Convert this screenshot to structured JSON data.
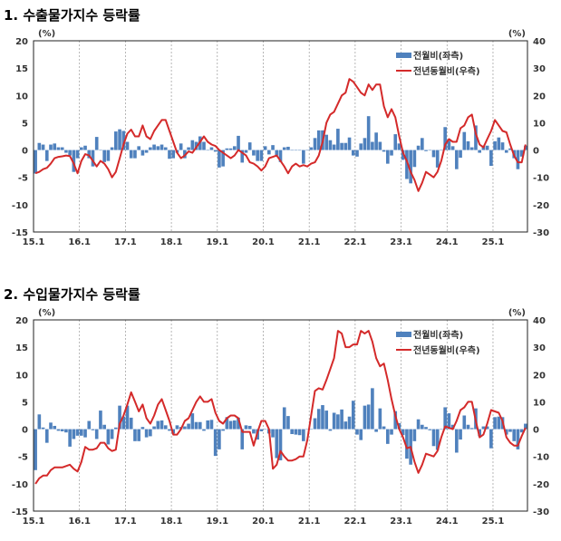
{
  "chart_data": [
    {
      "type": "bar+line",
      "title": "1. 수출물가지수 등락률",
      "left_unit": "(%)",
      "right_unit": "(%)",
      "x_ticks": [
        "15.1",
        "16.1",
        "17.1",
        "18.1",
        "19.1",
        "20.1",
        "21.1",
        "22.1",
        "23.1",
        "24.1",
        "25.1"
      ],
      "x_range": [
        "2015-01",
        "2025-09"
      ],
      "ylim_left": [
        -15,
        20
      ],
      "yticks_left": [
        20,
        15,
        10,
        5,
        0,
        -5,
        -10,
        -15
      ],
      "ylim_right": [
        -30,
        40
      ],
      "yticks_right": [
        40,
        30,
        20,
        10,
        0,
        -10,
        -20,
        -30
      ],
      "grid": "vertical dashed at year starts",
      "legend": "top-right",
      "series": [
        {
          "name": "전월비(좌측)",
          "type": "bar",
          "axis": "left",
          "color": "#4f81bd",
          "values": [
            -4.3,
            1.3,
            1,
            -2,
            1,
            1.2,
            0.5,
            0.5,
            -0.5,
            -1,
            -4,
            -1.5,
            0.5,
            0.8,
            -1.5,
            -3,
            2.4,
            0,
            -2.2,
            -2,
            0.5,
            3.4,
            3.8,
            3.5,
            1.5,
            -1.5,
            -1.5,
            0.7,
            -1,
            -0.5,
            0.5,
            1,
            0.7,
            1,
            0.5,
            -1.6,
            -1.5,
            -0.5,
            1.2,
            -1.5,
            0.5,
            1.8,
            1.5,
            2.5,
            1.5,
            0,
            0.5,
            -0.3,
            -3.2,
            -3,
            0.3,
            0.3,
            0.7,
            2.6,
            -2.3,
            -0.5,
            1.4,
            -1,
            -2,
            -2,
            0.7,
            -0.8,
            0.9,
            -1,
            -2.2,
            0.5,
            0.6,
            0,
            0,
            0,
            -2.5,
            0,
            0.5,
            2.2,
            3.6,
            3.6,
            2.8,
            1.8,
            1,
            3.9,
            1.3,
            1.3,
            2.3,
            -1,
            -1.2,
            1.2,
            2.2,
            6.2,
            1.5,
            3.2,
            1.5,
            -0.3,
            -2.5,
            -1,
            2.9,
            1.2,
            -1.8,
            -5.3,
            -6.1,
            -3.1,
            0.8,
            2.2,
            -0.2,
            0,
            -1.3,
            -3.2,
            0,
            4.2,
            1.7,
            0.7,
            -3.5,
            -1.4,
            3.3,
            1.6,
            0.5,
            4.5,
            -0.5,
            0.8,
            0.8,
            -2.9,
            1.6,
            2.3,
            1.4,
            -0.5,
            0.3,
            -1.5,
            -3.5,
            -1.2,
            0.8
          ]
        },
        {
          "name": "전년동월비(우측)",
          "type": "line",
          "axis": "right",
          "color": "#d42a2a",
          "values": [
            -8.5,
            -8,
            -7,
            -6.5,
            -5,
            -3,
            -2.5,
            -2.3,
            -2,
            -2.2,
            -5,
            -8.5,
            -4,
            -1.5,
            -2,
            -4,
            -6,
            -4,
            -5,
            -7,
            -10,
            -8,
            -3,
            2,
            6,
            7.5,
            5,
            5,
            9,
            5,
            4,
            7,
            9,
            11,
            11,
            7,
            3,
            -1,
            -3,
            -2,
            -0.5,
            -1,
            1,
            3,
            5,
            3,
            2,
            1.5,
            0,
            -1,
            -2,
            -3,
            -2,
            0,
            -1,
            -2,
            -4.5,
            -5,
            -6,
            -7.5,
            -6,
            -3,
            -2.5,
            -2,
            -4,
            -6,
            -8.5,
            -6,
            -5,
            -6,
            -5.5,
            -6,
            -5,
            -4.5,
            -2,
            3,
            10,
            13,
            14,
            17,
            20,
            21,
            26,
            25,
            23,
            21,
            20,
            24,
            22,
            24,
            24,
            16,
            12,
            15,
            12,
            5,
            -1,
            -4,
            -8,
            -11,
            -15,
            -12,
            -8,
            -9,
            -10,
            -8,
            -4,
            2,
            4,
            3,
            3,
            8,
            9,
            12,
            13,
            6,
            2,
            1,
            4,
            7,
            11,
            9,
            7,
            6.5,
            2,
            -2,
            -4.5,
            -4.5,
            2
          ]
        }
      ]
    },
    {
      "type": "bar+line",
      "title": "2. 수입물가지수 등락률",
      "left_unit": "(%)",
      "right_unit": "(%)",
      "x_ticks": [
        "15.1",
        "16.1",
        "17.1",
        "18.1",
        "19.1",
        "20.1",
        "21.1",
        "22.1",
        "23.1",
        "24.1",
        "25.1"
      ],
      "x_range": [
        "2015-01",
        "2025-09"
      ],
      "ylim_left": [
        -15,
        20
      ],
      "yticks_left": [
        20,
        15,
        10,
        5,
        0,
        -5,
        -10,
        -15
      ],
      "ylim_right": [
        -30,
        40
      ],
      "yticks_right": [
        40,
        30,
        20,
        10,
        0,
        -10,
        -20,
        -30
      ],
      "grid": "vertical dashed at year starts",
      "legend": "top-right",
      "series": [
        {
          "name": "전월비(좌측)",
          "type": "bar",
          "axis": "left",
          "color": "#4f81bd",
          "values": [
            -7.5,
            2.7,
            0.3,
            -2.5,
            1.2,
            0.6,
            -0.3,
            -0.4,
            -0.6,
            -3.2,
            -1.8,
            -1.2,
            -1.2,
            -1.5,
            1.5,
            -0.2,
            -1.8,
            3.4,
            0.8,
            -2.8,
            -1.8,
            0.3,
            4.3,
            2.3,
            4.3,
            2.1,
            -2.2,
            -2.2,
            0.4,
            -1.5,
            -1.3,
            0.5,
            1.5,
            1.6,
            0.7,
            -0.3,
            -0.8,
            0.7,
            0.4,
            0.5,
            1,
            2.9,
            1.3,
            1.3,
            -0.3,
            1.6,
            1.7,
            -4.9,
            -3.7,
            -0.3,
            2.2,
            1.5,
            1.6,
            2.1,
            -3.7,
            0.7,
            0.6,
            -0.8,
            -1.9,
            -0.4,
            0,
            -0.8,
            -1.5,
            -5.3,
            -5.7,
            4,
            2.4,
            -0.9,
            -1,
            -1.1,
            -2.2,
            0,
            0,
            2,
            3.7,
            4.4,
            3.4,
            -0.3,
            3,
            2.7,
            3.6,
            1.4,
            2.3,
            5.2,
            -1,
            -2,
            4.3,
            4.5,
            7.5,
            -0.5,
            3.8,
            0.5,
            -2.7,
            -1,
            3.3,
            1.1,
            -1.1,
            -5.4,
            -6.5,
            -2.2,
            1.8,
            0.8,
            0.4,
            -0.2,
            -3.1,
            -3.8,
            0,
            4,
            2.9,
            0.8,
            -4.3,
            -1.9,
            2.5,
            0.8,
            0.2,
            3.8,
            -1.3,
            0.5,
            0.5,
            -3.5,
            2.2,
            2.3,
            2.2,
            -1,
            -0.5,
            -2.2,
            -3.7,
            -0.6,
            1.0
          ]
        },
        {
          "name": "전년동월비(우측)",
          "type": "line",
          "axis": "right",
          "color": "#d42a2a",
          "values": [
            -20,
            -18,
            -17,
            -17,
            -15,
            -14,
            -14,
            -14,
            -13.5,
            -13,
            -14.5,
            -15.5,
            -12,
            -6.5,
            -7.5,
            -7.5,
            -7,
            -5,
            -5,
            -7,
            -8,
            -7.5,
            2,
            5,
            9,
            13.5,
            10,
            6.5,
            9,
            4,
            2,
            5,
            9,
            11,
            7,
            3,
            -2,
            -2,
            0,
            3,
            4,
            7,
            10,
            12,
            10,
            10,
            11,
            6,
            3,
            2,
            4,
            5,
            5,
            4,
            -1,
            -1,
            -1,
            -6,
            -1,
            3,
            3,
            0,
            -14.5,
            -13,
            -8,
            -10,
            -11.5,
            -11.5,
            -11,
            -10,
            -10,
            -4,
            5,
            14,
            15,
            14.5,
            18,
            22,
            26,
            36,
            35,
            30,
            30,
            31,
            31,
            36,
            35,
            36,
            32,
            26,
            23,
            24,
            18,
            11,
            5,
            0,
            -3,
            -7,
            -6.5,
            -12,
            -16,
            -13,
            -9,
            -9.5,
            -10,
            -8,
            -3,
            1,
            0.5,
            0,
            3,
            7,
            8,
            10,
            10,
            3,
            -3,
            -2,
            2,
            7,
            6.5,
            6,
            3,
            -3,
            -5,
            -6,
            -6,
            -2.5,
            0.5
          ]
        }
      ]
    }
  ]
}
